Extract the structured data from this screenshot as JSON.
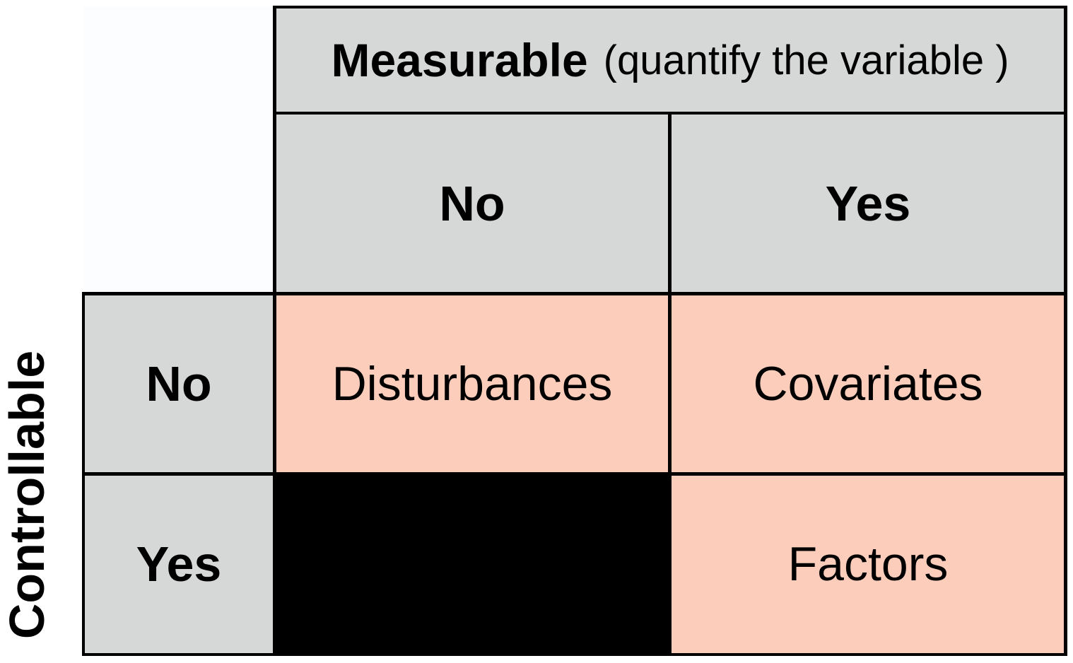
{
  "column_axis": {
    "title": "Measurable",
    "subtitle": "(quantify the variable )",
    "no": "No",
    "yes": "Yes"
  },
  "row_axis": {
    "title": "Controllable",
    "no": "No",
    "yes": "Yes"
  },
  "cells": {
    "no_no": "Disturbances",
    "no_yes": "Covariates",
    "yes_no": "",
    "yes_yes": "Factors"
  },
  "colors": {
    "header": "#d6d8d8",
    "category": "#fdcdbb",
    "empty": "#000000"
  }
}
